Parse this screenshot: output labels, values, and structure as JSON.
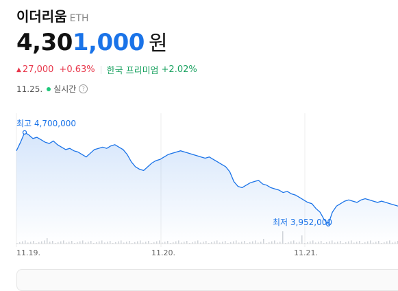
{
  "coin": {
    "name": "이더리움",
    "symbol": "ETH"
  },
  "price": {
    "dark_part": "4,30",
    "blue_part": "1,000",
    "unit": "원"
  },
  "change": {
    "arrow": "▲",
    "amount": "27,000",
    "percent": "+0.63%"
  },
  "premium": {
    "label": "한국 프리미엄",
    "value": "+2.02%"
  },
  "status": {
    "date": "11.25.",
    "realtime": "실시간",
    "help": "?"
  },
  "chart_labels": {
    "high": "최고 4,700,000",
    "low": "최저 3,952,000"
  },
  "colors": {
    "line": "#1a73e8",
    "up": "#e8374b",
    "green": "#1aa260"
  },
  "chart_data": {
    "type": "area",
    "x_ticks": [
      "11.19.",
      "11.20.",
      "11.21."
    ],
    "values": [
      4550000,
      4620000,
      4700000,
      4680000,
      4650000,
      4660000,
      4640000,
      4620000,
      4610000,
      4630000,
      4600000,
      4580000,
      4560000,
      4570000,
      4550000,
      4540000,
      4520000,
      4500000,
      4530000,
      4560000,
      4570000,
      4580000,
      4570000,
      4590000,
      4600000,
      4580000,
      4560000,
      4520000,
      4460000,
      4420000,
      4400000,
      4390000,
      4420000,
      4450000,
      4470000,
      4480000,
      4500000,
      4520000,
      4530000,
      4540000,
      4550000,
      4540000,
      4530000,
      4520000,
      4510000,
      4500000,
      4490000,
      4500000,
      4480000,
      4460000,
      4440000,
      4420000,
      4380000,
      4300000,
      4260000,
      4250000,
      4270000,
      4290000,
      4300000,
      4310000,
      4280000,
      4270000,
      4250000,
      4240000,
      4230000,
      4210000,
      4220000,
      4200000,
      4190000,
      4170000,
      4150000,
      4130000,
      4120000,
      4080000,
      4050000,
      3990000,
      3952000,
      4050000,
      4100000,
      4120000,
      4140000,
      4150000,
      4140000,
      4130000,
      4150000,
      4160000,
      4150000,
      4140000,
      4130000,
      4140000,
      4130000,
      4120000,
      4110000,
      4100000
    ],
    "ylim": [
      3850000,
      4800000
    ],
    "high": 4700000,
    "low": 3952000
  }
}
